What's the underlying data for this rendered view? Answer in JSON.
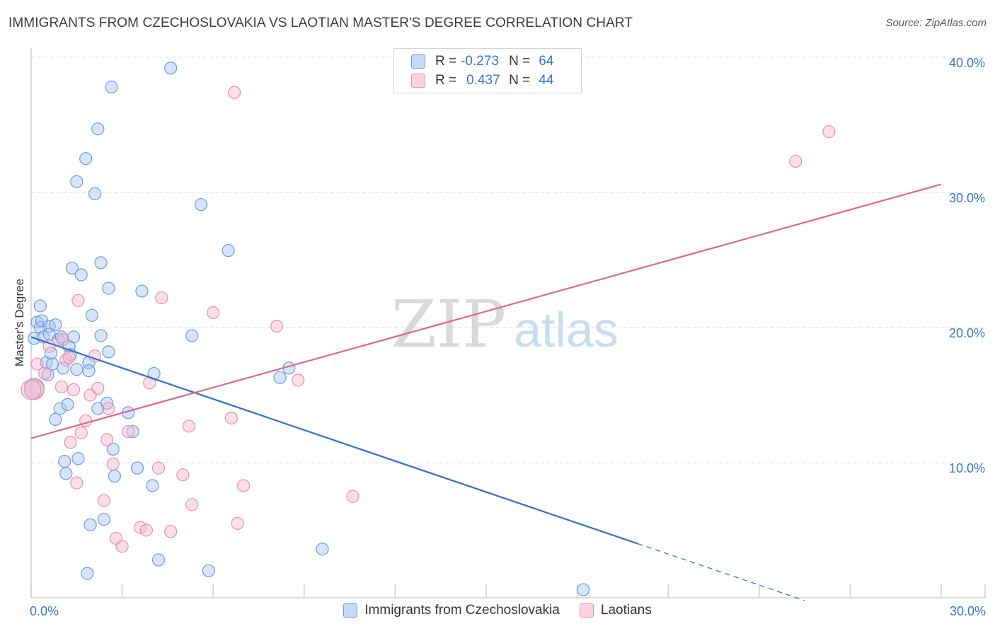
{
  "chart_data": {
    "type": "scatter",
    "title": "IMMIGRANTS FROM CZECHOSLOVAKIA VS LAOTIAN MASTER'S DEGREE CORRELATION CHART",
    "source": "Source: ZipAtlas.com",
    "ylabel": "Master's Degree",
    "watermark": {
      "zip": "ZIP",
      "atlas": "atlas"
    },
    "xlim": [
      0,
      30
    ],
    "ylim": [
      0,
      41
    ],
    "x_tick_labels": [
      {
        "value": 0,
        "label": "0.0%"
      },
      {
        "value": 30,
        "label": "30.0%"
      }
    ],
    "y_tick_labels": [
      {
        "value": 10,
        "label": "10.0%"
      },
      {
        "value": 20,
        "label": "20.0%"
      },
      {
        "value": 30,
        "label": "30.0%"
      },
      {
        "value": 40,
        "label": "40.0%"
      }
    ],
    "legend": [
      {
        "r_label": "R =",
        "r_value": "-0.273",
        "n_label": "N =",
        "n_value": "64"
      },
      {
        "r_label": "R =",
        "r_value": "0.437",
        "n_label": "N =",
        "n_value": "44"
      }
    ],
    "series": [
      {
        "name": "Immigrants from Czechoslovakia",
        "color": "#a9c6ef",
        "stroke": "#6b9be0",
        "line_color": "#2f6fd0",
        "trend": {
          "x0": 0,
          "y0": 19.3,
          "x1": 20,
          "y1": 4.0,
          "dash_x1": 25.5
        },
        "points": [
          [
            0.1,
            19.2
          ],
          [
            0.1,
            15.5
          ],
          [
            0.2,
            20.4
          ],
          [
            0.3,
            21.6
          ],
          [
            0.3,
            20.0
          ],
          [
            0.35,
            20.5
          ],
          [
            0.4,
            19.3
          ],
          [
            0.5,
            17.4
          ],
          [
            0.55,
            16.5
          ],
          [
            0.6,
            20.1
          ],
          [
            0.6,
            19.5
          ],
          [
            0.65,
            18.1
          ],
          [
            0.7,
            17.3
          ],
          [
            0.8,
            20.2
          ],
          [
            0.8,
            13.2
          ],
          [
            0.9,
            19.1
          ],
          [
            0.95,
            14.0
          ],
          [
            1.0,
            19.3
          ],
          [
            1.05,
            17.0
          ],
          [
            1.1,
            10.1
          ],
          [
            1.15,
            9.2
          ],
          [
            1.2,
            14.3
          ],
          [
            1.25,
            18.6
          ],
          [
            1.3,
            18.0
          ],
          [
            1.35,
            24.4
          ],
          [
            1.4,
            19.3
          ],
          [
            1.5,
            30.8
          ],
          [
            1.5,
            16.9
          ],
          [
            1.55,
            10.3
          ],
          [
            1.65,
            23.9
          ],
          [
            1.8,
            32.5
          ],
          [
            1.85,
            1.8
          ],
          [
            1.9,
            17.4
          ],
          [
            1.9,
            16.8
          ],
          [
            1.95,
            5.4
          ],
          [
            2.0,
            20.9
          ],
          [
            2.1,
            29.9
          ],
          [
            2.2,
            34.7
          ],
          [
            2.2,
            14.0
          ],
          [
            2.3,
            24.8
          ],
          [
            2.3,
            19.4
          ],
          [
            2.4,
            5.8
          ],
          [
            2.5,
            14.4
          ],
          [
            2.55,
            18.2
          ],
          [
            2.55,
            22.9
          ],
          [
            2.65,
            37.8
          ],
          [
            2.7,
            11.0
          ],
          [
            2.75,
            9.0
          ],
          [
            3.2,
            13.7
          ],
          [
            3.35,
            12.3
          ],
          [
            3.5,
            9.6
          ],
          [
            3.65,
            22.7
          ],
          [
            4.0,
            8.3
          ],
          [
            4.05,
            16.6
          ],
          [
            4.2,
            2.8
          ],
          [
            4.6,
            39.2
          ],
          [
            5.3,
            19.4
          ],
          [
            5.6,
            29.1
          ],
          [
            5.85,
            2.0
          ],
          [
            6.5,
            25.7
          ],
          [
            8.2,
            16.3
          ],
          [
            8.5,
            17.0
          ],
          [
            9.6,
            3.6
          ],
          [
            18.2,
            0.6
          ]
        ]
      },
      {
        "name": "Laotians",
        "color": "#f5b8cc",
        "stroke": "#ec8fae",
        "line_color": "#e0668f",
        "trend": {
          "x0": 0,
          "y0": 11.8,
          "x1": 30,
          "y1": 30.6
        },
        "points": [
          [
            0.1,
            15.4
          ],
          [
            0.2,
            17.3
          ],
          [
            0.45,
            16.6
          ],
          [
            0.6,
            18.6
          ],
          [
            1.0,
            15.6
          ],
          [
            1.05,
            19.1
          ],
          [
            1.15,
            17.6
          ],
          [
            1.25,
            17.8
          ],
          [
            1.3,
            11.5
          ],
          [
            1.4,
            15.4
          ],
          [
            1.5,
            8.5
          ],
          [
            1.55,
            22.0
          ],
          [
            1.65,
            12.2
          ],
          [
            1.8,
            13.1
          ],
          [
            1.95,
            15.0
          ],
          [
            2.1,
            17.9
          ],
          [
            2.2,
            15.5
          ],
          [
            2.4,
            7.2
          ],
          [
            2.5,
            11.7
          ],
          [
            2.55,
            14.0
          ],
          [
            2.7,
            9.9
          ],
          [
            2.8,
            4.4
          ],
          [
            3.0,
            3.8
          ],
          [
            3.2,
            12.3
          ],
          [
            3.6,
            5.2
          ],
          [
            3.8,
            5.0
          ],
          [
            3.9,
            15.9
          ],
          [
            4.2,
            9.6
          ],
          [
            4.3,
            22.2
          ],
          [
            4.6,
            4.9
          ],
          [
            5.0,
            9.1
          ],
          [
            5.2,
            12.7
          ],
          [
            5.3,
            6.9
          ],
          [
            6.0,
            21.1
          ],
          [
            6.6,
            13.3
          ],
          [
            6.7,
            37.4
          ],
          [
            6.8,
            5.5
          ],
          [
            7.0,
            8.3
          ],
          [
            8.1,
            20.1
          ],
          [
            8.8,
            16.1
          ],
          [
            10.6,
            7.5
          ],
          [
            25.2,
            32.3
          ],
          [
            26.3,
            34.5
          ],
          [
            0.0,
            15.4
          ]
        ]
      }
    ]
  }
}
